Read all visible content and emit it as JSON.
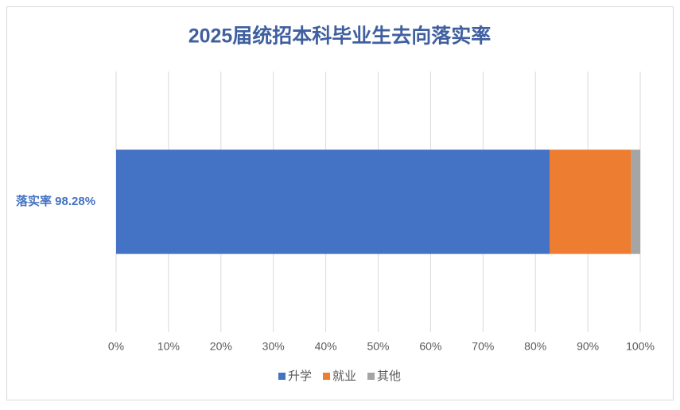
{
  "chart_data": {
    "type": "bar",
    "orientation": "horizontal",
    "stacked": true,
    "title": "2025届统招本科毕业生去向落实率",
    "categories": [
      "落实率 98.28%"
    ],
    "series": [
      {
        "name": "升学",
        "color": "#4472c4",
        "values": [
          82.7
        ]
      },
      {
        "name": "就业",
        "color": "#ed7d31",
        "values": [
          15.58
        ]
      },
      {
        "name": "其他",
        "color": "#a5a5a5",
        "values": [
          1.72
        ]
      }
    ],
    "xlim": [
      0,
      100
    ],
    "xticks": [
      {
        "value": 0,
        "label": "0%"
      },
      {
        "value": 10,
        "label": "10%"
      },
      {
        "value": 20,
        "label": "20%"
      },
      {
        "value": 30,
        "label": "30%"
      },
      {
        "value": 40,
        "label": "40%"
      },
      {
        "value": 50,
        "label": "50%"
      },
      {
        "value": 60,
        "label": "60%"
      },
      {
        "value": 70,
        "label": "70%"
      },
      {
        "value": 80,
        "label": "80%"
      },
      {
        "value": 90,
        "label": "90%"
      },
      {
        "value": 100,
        "label": "100%"
      }
    ],
    "grid": true,
    "legend": "bottom"
  }
}
